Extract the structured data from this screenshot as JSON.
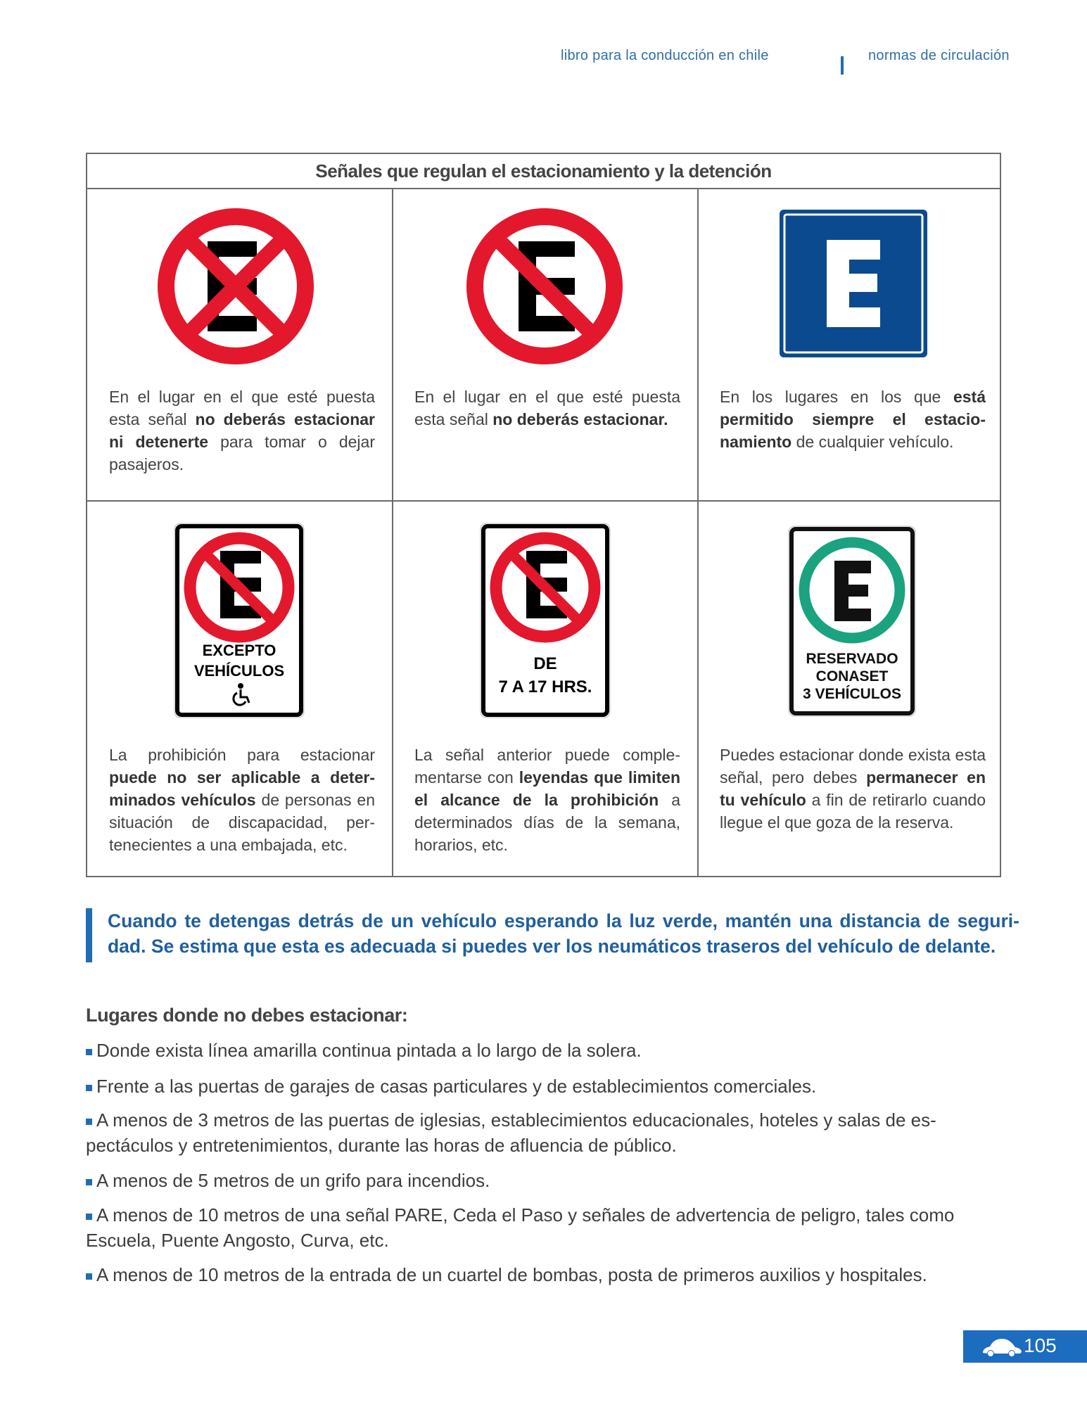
{
  "header": {
    "book": "libro para la conducción en chile",
    "section": "normas de circulación"
  },
  "table": {
    "title": "Señales que regulan el estacionamiento y la detención",
    "cells": [
      {
        "sign": "no-stopping-sign",
        "text": [
          "En el lugar en el que esté puesta esta señal ",
          "no deberás estacionar ni detenerte",
          " para tomar o dejar pasajeros."
        ]
      },
      {
        "sign": "no-parking-sign",
        "text": [
          "En el lugar en el que esté puesta esta señal ",
          "no deberás estacionar.",
          ""
        ]
      },
      {
        "sign": "parking-allowed-sign",
        "text": [
          "En los lugares en los que ",
          "está permitido siempre el estacio­namiento",
          " de cualquier vehículo."
        ]
      },
      {
        "sign": "no-parking-except-disabled-sign",
        "sign_text": [
          "EXCEPTO",
          "VEHÍCULOS"
        ],
        "text": [
          "La prohibición para estacionar ",
          "puede no ser aplicable a deter­minados vehículos",
          " de personas en situación de discapacidad, per­tenecientes a una embajada, etc."
        ]
      },
      {
        "sign": "no-parking-hours-sign",
        "sign_text": [
          "DE",
          "7 A 17 HRS."
        ],
        "text": [
          "La señal anterior puede comple­mentarse con ",
          "leyendas que limi­ten el alcance de la prohibición",
          " a determinados días de la semana, horarios, etc."
        ]
      },
      {
        "sign": "reserved-parking-sign",
        "sign_text": [
          "RESERVADO",
          "CONASET",
          "3 VEHÍCULOS"
        ],
        "text": [
          "Puedes estacionar donde exista esta señal, pero debes ",
          "perma­necer en tu vehículo",
          " a fin de retirarlo cuando llegue el que goza de la reserva."
        ]
      }
    ]
  },
  "callout": "Cuando te detengas detrás de un vehículo esperando la luz verde, mantén una distancia de seguri- dad. Se estima que esta es adecuada si puedes ver los neumáticos traseros del vehículo de delante.",
  "list": {
    "heading": "Lugares donde no debes estacionar:",
    "items": [
      "Donde exista línea amarilla continua pintada a lo largo de la solera.",
      "Frente a las puertas de garajes de casas particulares y de establecimientos comerciales.",
      "A menos de 3 metros de las puertas de iglesias, establecimientos educacionales, hoteles y salas de es­pectáculos y entretenimientos, durante las horas de afluencia de público.",
      "A menos de 5 metros de un grifo para incendios.",
      "A menos de 10 metros de una señal PARE, Ceda el Paso y señales de advertencia de peligro, tales como Escuela, Puente Angosto, Curva, etc.",
      "A menos de 10 metros de la entrada de un cuartel de bombas, posta de primeros auxilios y hospitales."
    ]
  },
  "footer": {
    "page_number": "105",
    "icon": "car-icon"
  },
  "colors": {
    "accent_blue": "#1f6cb5",
    "sign_red": "#e3182d",
    "sign_blue": "#0b4a8f",
    "sign_green": "#1aa37e"
  }
}
